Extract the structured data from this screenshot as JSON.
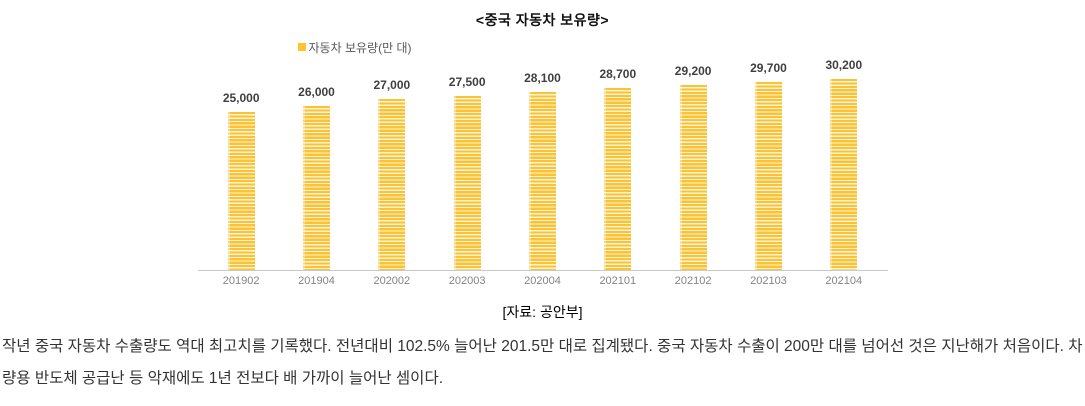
{
  "chart_data": {
    "type": "bar",
    "title": "<중국 자동차 보유량>",
    "legend": "자동차 보유량(만 대)",
    "categories": [
      "201902",
      "201904",
      "202002",
      "202003",
      "202004",
      "202101",
      "202102",
      "202103",
      "202104"
    ],
    "values": [
      25000,
      26000,
      27000,
      27500,
      28100,
      28700,
      29200,
      29700,
      30200
    ],
    "value_labels": [
      "25,000",
      "26,000",
      "27,000",
      "27,500",
      "28,100",
      "28,700",
      "29,200",
      "29,700",
      "30,200"
    ],
    "xlabel": "",
    "ylabel": "",
    "ylim": [
      0,
      30200
    ],
    "grid": false,
    "legend_position": "top-left",
    "bar_color": "#FAC234",
    "bar_stripe_color": "#FFF4D6",
    "legend_swatch_color": "#FFC42E",
    "axis_line_color": "#C9C9C9"
  },
  "source_caption": "[자료: 공안부]",
  "article": {
    "paragraph": "작년 중국 자동차 수출량도 역대 최고치를 기록했다. 전년대비 102.5% 늘어난 201.5만 대로 집계됐다. 중국 자동차 수출이 200만 대를 넘어선 것은 지난해가 처음이다. 차량용 반도체 공급난 등 악재에도 1년 전보다 배 가까이 늘어난 셈이다."
  }
}
